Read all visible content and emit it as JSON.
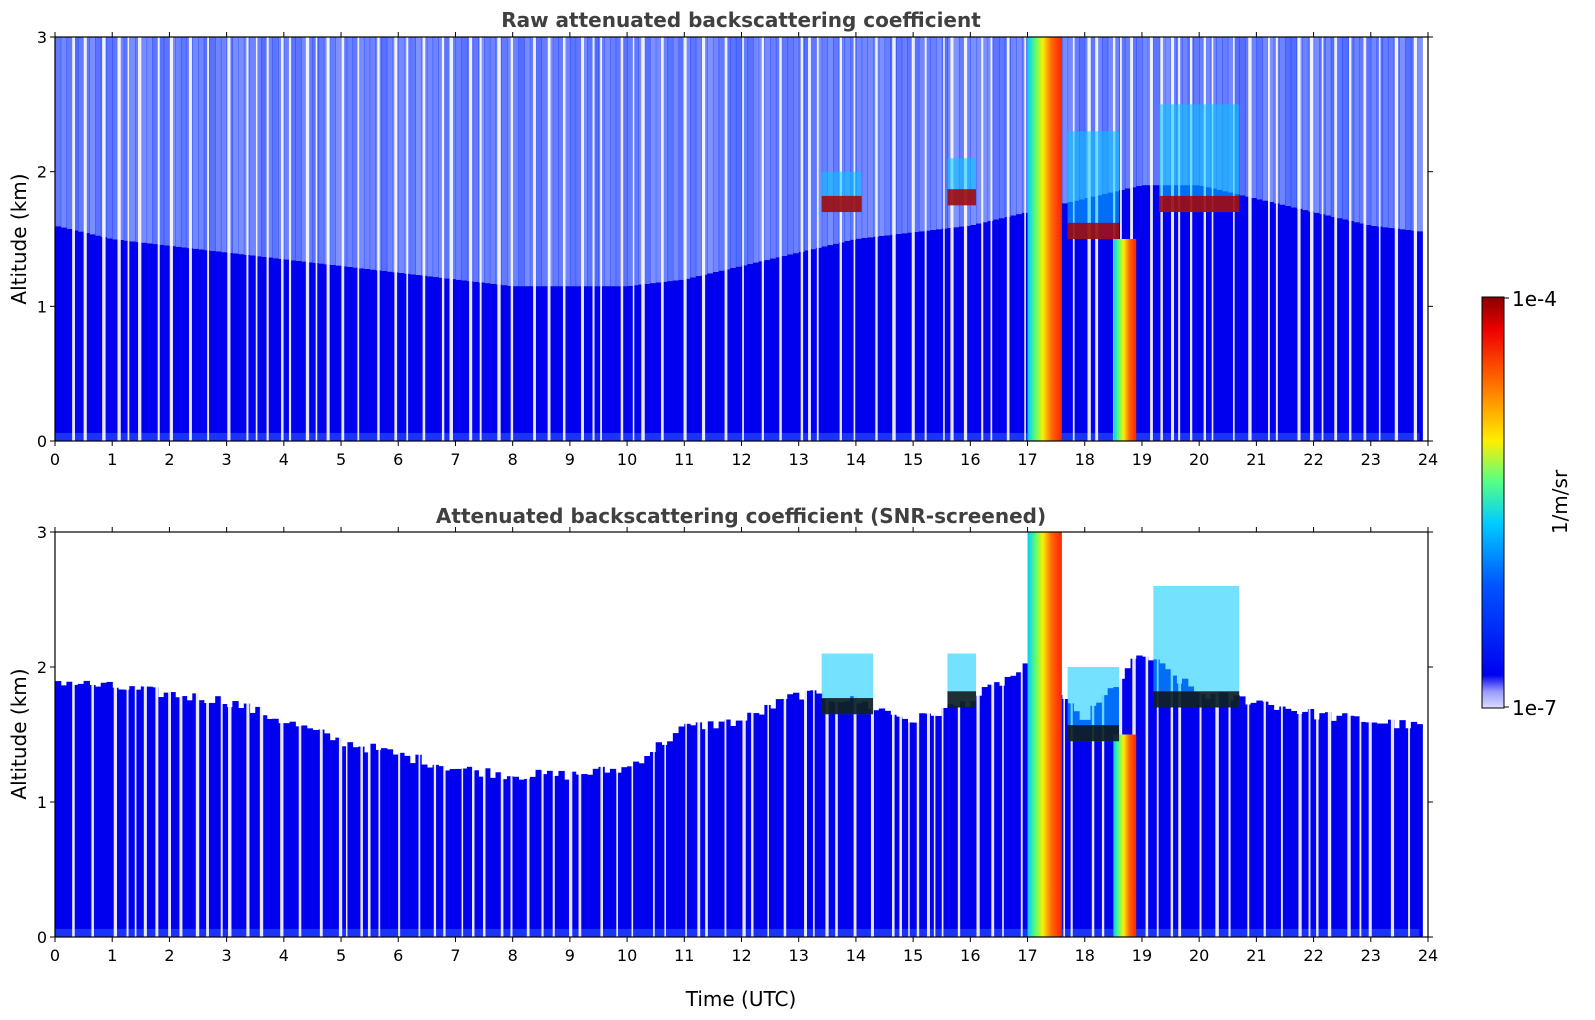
{
  "chart_data": [
    {
      "type": "heatmap",
      "title": "Raw attenuated backscattering coefficient",
      "xlabel": "",
      "ylabel": "Altitude (km)",
      "xlim": [
        0,
        24
      ],
      "ylim": [
        0,
        3
      ],
      "x_ticks": [
        "0",
        "1",
        "2",
        "3",
        "4",
        "5",
        "6",
        "7",
        "8",
        "9",
        "10",
        "11",
        "12",
        "13",
        "14",
        "15",
        "16",
        "17",
        "18",
        "19",
        "20",
        "21",
        "22",
        "23",
        "24"
      ],
      "y_ticks": [
        "0",
        "1",
        "2",
        "3"
      ],
      "noise_top_km": [
        1.6,
        1.5,
        1.45,
        1.4,
        1.35,
        1.3,
        1.25,
        1.2,
        1.15,
        1.15,
        1.15,
        1.2,
        1.3,
        1.4,
        1.5,
        1.55,
        1.6,
        1.7,
        1.8,
        1.9,
        1.9,
        1.8,
        1.7,
        1.6,
        1.55
      ],
      "clouds": [
        {
          "x0": 13.4,
          "x1": 14.1,
          "bottom": 1.7,
          "top": 2.0
        },
        {
          "x0": 15.6,
          "x1": 16.1,
          "bottom": 1.75,
          "top": 2.1
        },
        {
          "x0": 17.7,
          "x1": 18.6,
          "bottom": 1.5,
          "top": 2.3
        },
        {
          "x0": 19.3,
          "x1": 20.7,
          "bottom": 1.7,
          "top": 2.5
        }
      ],
      "plume": {
        "x0": 17.0,
        "x1": 17.6,
        "bottom": 0.0,
        "top": 3.0
      },
      "colorscale": "jet"
    },
    {
      "type": "heatmap",
      "title": "Attenuated backscattering coefficient (SNR-screened)",
      "xlabel": "Time (UTC)",
      "ylabel": "Altitude (km)",
      "xlim": [
        0,
        24
      ],
      "ylim": [
        0,
        3
      ],
      "x_ticks": [
        "0",
        "1",
        "2",
        "3",
        "4",
        "5",
        "6",
        "7",
        "8",
        "9",
        "10",
        "11",
        "12",
        "13",
        "14",
        "15",
        "16",
        "17",
        "18",
        "19",
        "20",
        "21",
        "22",
        "23",
        "24"
      ],
      "y_ticks": [
        "0",
        "1",
        "2",
        "3"
      ],
      "boundary_layer_top_km": [
        1.9,
        1.85,
        1.8,
        1.75,
        1.6,
        1.45,
        1.35,
        1.25,
        1.2,
        1.2,
        1.25,
        1.55,
        1.6,
        1.8,
        1.75,
        1.6,
        1.75,
        2.0,
        1.6,
        2.1,
        1.8,
        1.75,
        1.65,
        1.6,
        1.55
      ],
      "clouds": [
        {
          "x0": 13.4,
          "x1": 14.3,
          "bottom": 1.65,
          "top": 2.1
        },
        {
          "x0": 15.6,
          "x1": 16.1,
          "bottom": 1.7,
          "top": 2.1
        },
        {
          "x0": 17.7,
          "x1": 18.6,
          "bottom": 1.45,
          "top": 2.0
        },
        {
          "x0": 19.2,
          "x1": 20.7,
          "bottom": 1.7,
          "top": 2.6
        }
      ],
      "plume": {
        "x0": 17.0,
        "x1": 17.6,
        "bottom": 0.0,
        "top": 3.0
      },
      "colorscale": "jet"
    }
  ],
  "colorbar": {
    "max_label": "1e-4",
    "min_label": "1e-7",
    "unit_label": "1/m/sr"
  },
  "colors": {
    "background_blue": "#1a3cff",
    "deep_blue": "#0000ee"
  }
}
